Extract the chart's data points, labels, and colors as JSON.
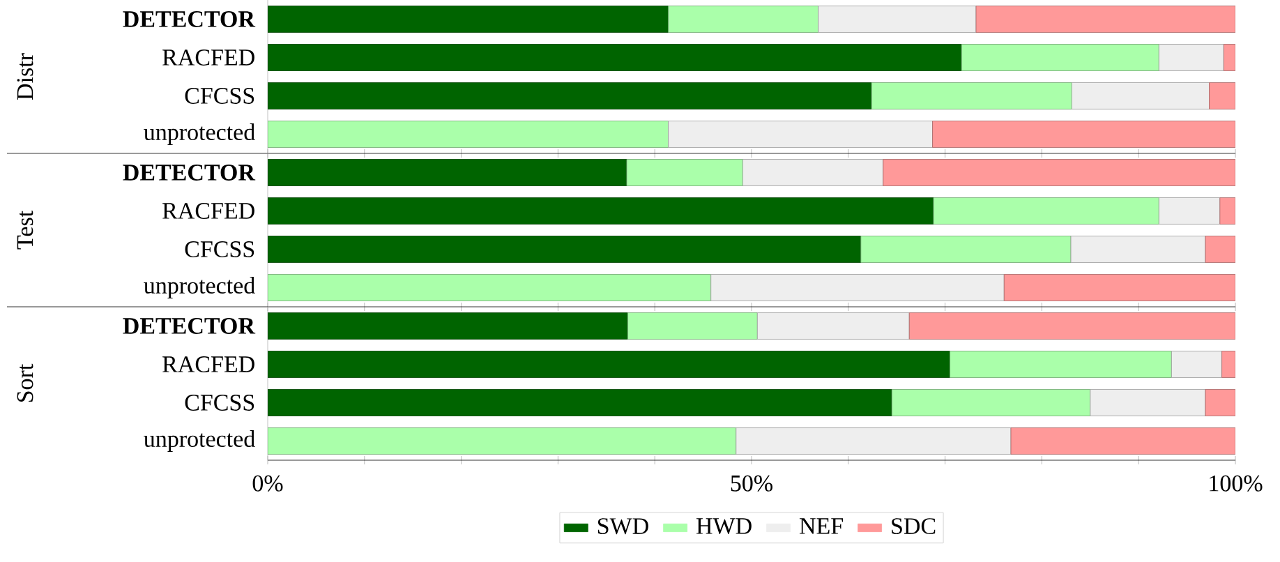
{
  "chart_data": [
    {
      "type": "bar",
      "orientation": "horizontal",
      "stacked": true,
      "ylabel": "Distr",
      "categories": [
        "**DETECTOR**",
        "RACFED",
        "CFCSS",
        "unprotected"
      ],
      "series": [
        {
          "color": "#006400",
          "values": [
            41.4,
            71.7,
            62.4,
            null
          ]
        },
        {
          "color": "#aaffaa",
          "values": [
            15.5,
            20.4,
            20.7,
            41.4
          ]
        },
        {
          "color": "#eeeeee",
          "values": [
            16.3,
            6.7,
            14.2,
            27.3
          ]
        },
        {
          "color": "#ff9999",
          "values": [
            26.8,
            1.2,
            2.7,
            31.3
          ]
        }
      ],
      "xlim": [
        0,
        100
      ],
      "xticks": [
        {
          "value": 0,
          "label": null
        },
        {
          "value": 10,
          "label": null
        },
        {
          "value": 20,
          "label": null
        },
        {
          "value": 30,
          "label": null
        },
        {
          "value": 40,
          "label": null
        },
        {
          "value": 50,
          "label": null
        },
        {
          "value": 60,
          "label": null
        },
        {
          "value": 70,
          "label": null
        },
        {
          "value": 80,
          "label": null
        },
        {
          "value": 90,
          "label": null
        },
        {
          "value": 100,
          "label": null
        }
      ],
      "tick_labels": "y"
    },
    {
      "type": "bar",
      "orientation": "horizontal",
      "stacked": true,
      "ylabel": "Test",
      "categories": [
        "**DETECTOR**",
        "RACFED",
        "CFCSS",
        "unprotected"
      ],
      "series": [
        {
          "color": "#006400",
          "values": [
            37.1,
            68.8,
            61.3,
            null
          ]
        },
        {
          "color": "#aaffaa",
          "values": [
            12.0,
            23.3,
            21.7,
            45.8
          ]
        },
        {
          "color": "#eeeeee",
          "values": [
            14.5,
            6.3,
            13.9,
            30.3
          ]
        },
        {
          "color": "#ff9999",
          "values": [
            36.4,
            1.6,
            3.1,
            23.9
          ]
        }
      ],
      "xlim": [
        0,
        100
      ],
      "xticks": [
        {
          "value": 0,
          "label": null
        },
        {
          "value": 10,
          "label": null
        },
        {
          "value": 20,
          "label": null
        },
        {
          "value": 30,
          "label": null
        },
        {
          "value": 40,
          "label": null
        },
        {
          "value": 50,
          "label": null
        },
        {
          "value": 60,
          "label": null
        },
        {
          "value": 70,
          "label": null
        },
        {
          "value": 80,
          "label": null
        },
        {
          "value": 90,
          "label": null
        },
        {
          "value": 100,
          "label": null
        }
      ],
      "tick_labels": "y"
    },
    {
      "type": "bar",
      "orientation": "horizontal",
      "stacked": true,
      "ylabel": "Sort",
      "categories": [
        "**DETECTOR**",
        "RACFED",
        "CFCSS",
        "unprotected"
      ],
      "series": [
        {
          "name": "SWD",
          "color": "#006400",
          "values": [
            37.2,
            70.5,
            64.5,
            null
          ]
        },
        {
          "name": "HWD",
          "color": "#aaffaa",
          "values": [
            13.4,
            22.9,
            20.5,
            48.4
          ]
        },
        {
          "name": "NEF",
          "color": "#eeeeee",
          "values": [
            15.7,
            5.2,
            11.9,
            28.4
          ]
        },
        {
          "name": "SDC",
          "color": "#ff9999",
          "values": [
            33.7,
            1.4,
            3.1,
            23.2
          ]
        }
      ],
      "xlim": [
        0,
        100
      ],
      "xticks": [
        {
          "value": 0,
          "label": "0%"
        },
        {
          "value": 10,
          "label": null
        },
        {
          "value": 20,
          "label": null
        },
        {
          "value": 30,
          "label": null
        },
        {
          "value": 40,
          "label": null
        },
        {
          "value": 50,
          "label": "50%"
        },
        {
          "value": 60,
          "label": null
        },
        {
          "value": 70,
          "label": null
        },
        {
          "value": 80,
          "label": null
        },
        {
          "value": 90,
          "label": null
        },
        {
          "value": 100,
          "label": "100%"
        }
      ],
      "legend": "bottom"
    }
  ]
}
